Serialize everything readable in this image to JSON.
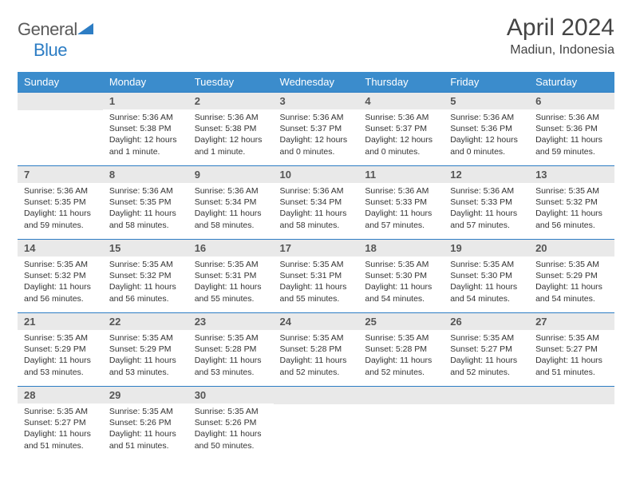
{
  "brand": {
    "word1": "General",
    "word2": "Blue"
  },
  "header": {
    "month": "April 2024",
    "location": "Madiun, Indonesia"
  },
  "colors": {
    "header_bg": "#3b8ccc",
    "border": "#2d7dc4",
    "daybg": "#e9e9e9",
    "text": "#333333"
  },
  "daynames": [
    "Sunday",
    "Monday",
    "Tuesday",
    "Wednesday",
    "Thursday",
    "Friday",
    "Saturday"
  ],
  "weeks": [
    [
      null,
      {
        "n": "1",
        "sr": "Sunrise: 5:36 AM",
        "ss": "Sunset: 5:38 PM",
        "dl": "Daylight: 12 hours and 1 minute."
      },
      {
        "n": "2",
        "sr": "Sunrise: 5:36 AM",
        "ss": "Sunset: 5:38 PM",
        "dl": "Daylight: 12 hours and 1 minute."
      },
      {
        "n": "3",
        "sr": "Sunrise: 5:36 AM",
        "ss": "Sunset: 5:37 PM",
        "dl": "Daylight: 12 hours and 0 minutes."
      },
      {
        "n": "4",
        "sr": "Sunrise: 5:36 AM",
        "ss": "Sunset: 5:37 PM",
        "dl": "Daylight: 12 hours and 0 minutes."
      },
      {
        "n": "5",
        "sr": "Sunrise: 5:36 AM",
        "ss": "Sunset: 5:36 PM",
        "dl": "Daylight: 12 hours and 0 minutes."
      },
      {
        "n": "6",
        "sr": "Sunrise: 5:36 AM",
        "ss": "Sunset: 5:36 PM",
        "dl": "Daylight: 11 hours and 59 minutes."
      }
    ],
    [
      {
        "n": "7",
        "sr": "Sunrise: 5:36 AM",
        "ss": "Sunset: 5:35 PM",
        "dl": "Daylight: 11 hours and 59 minutes."
      },
      {
        "n": "8",
        "sr": "Sunrise: 5:36 AM",
        "ss": "Sunset: 5:35 PM",
        "dl": "Daylight: 11 hours and 58 minutes."
      },
      {
        "n": "9",
        "sr": "Sunrise: 5:36 AM",
        "ss": "Sunset: 5:34 PM",
        "dl": "Daylight: 11 hours and 58 minutes."
      },
      {
        "n": "10",
        "sr": "Sunrise: 5:36 AM",
        "ss": "Sunset: 5:34 PM",
        "dl": "Daylight: 11 hours and 58 minutes."
      },
      {
        "n": "11",
        "sr": "Sunrise: 5:36 AM",
        "ss": "Sunset: 5:33 PM",
        "dl": "Daylight: 11 hours and 57 minutes."
      },
      {
        "n": "12",
        "sr": "Sunrise: 5:36 AM",
        "ss": "Sunset: 5:33 PM",
        "dl": "Daylight: 11 hours and 57 minutes."
      },
      {
        "n": "13",
        "sr": "Sunrise: 5:35 AM",
        "ss": "Sunset: 5:32 PM",
        "dl": "Daylight: 11 hours and 56 minutes."
      }
    ],
    [
      {
        "n": "14",
        "sr": "Sunrise: 5:35 AM",
        "ss": "Sunset: 5:32 PM",
        "dl": "Daylight: 11 hours and 56 minutes."
      },
      {
        "n": "15",
        "sr": "Sunrise: 5:35 AM",
        "ss": "Sunset: 5:32 PM",
        "dl": "Daylight: 11 hours and 56 minutes."
      },
      {
        "n": "16",
        "sr": "Sunrise: 5:35 AM",
        "ss": "Sunset: 5:31 PM",
        "dl": "Daylight: 11 hours and 55 minutes."
      },
      {
        "n": "17",
        "sr": "Sunrise: 5:35 AM",
        "ss": "Sunset: 5:31 PM",
        "dl": "Daylight: 11 hours and 55 minutes."
      },
      {
        "n": "18",
        "sr": "Sunrise: 5:35 AM",
        "ss": "Sunset: 5:30 PM",
        "dl": "Daylight: 11 hours and 54 minutes."
      },
      {
        "n": "19",
        "sr": "Sunrise: 5:35 AM",
        "ss": "Sunset: 5:30 PM",
        "dl": "Daylight: 11 hours and 54 minutes."
      },
      {
        "n": "20",
        "sr": "Sunrise: 5:35 AM",
        "ss": "Sunset: 5:29 PM",
        "dl": "Daylight: 11 hours and 54 minutes."
      }
    ],
    [
      {
        "n": "21",
        "sr": "Sunrise: 5:35 AM",
        "ss": "Sunset: 5:29 PM",
        "dl": "Daylight: 11 hours and 53 minutes."
      },
      {
        "n": "22",
        "sr": "Sunrise: 5:35 AM",
        "ss": "Sunset: 5:29 PM",
        "dl": "Daylight: 11 hours and 53 minutes."
      },
      {
        "n": "23",
        "sr": "Sunrise: 5:35 AM",
        "ss": "Sunset: 5:28 PM",
        "dl": "Daylight: 11 hours and 53 minutes."
      },
      {
        "n": "24",
        "sr": "Sunrise: 5:35 AM",
        "ss": "Sunset: 5:28 PM",
        "dl": "Daylight: 11 hours and 52 minutes."
      },
      {
        "n": "25",
        "sr": "Sunrise: 5:35 AM",
        "ss": "Sunset: 5:28 PM",
        "dl": "Daylight: 11 hours and 52 minutes."
      },
      {
        "n": "26",
        "sr": "Sunrise: 5:35 AM",
        "ss": "Sunset: 5:27 PM",
        "dl": "Daylight: 11 hours and 52 minutes."
      },
      {
        "n": "27",
        "sr": "Sunrise: 5:35 AM",
        "ss": "Sunset: 5:27 PM",
        "dl": "Daylight: 11 hours and 51 minutes."
      }
    ],
    [
      {
        "n": "28",
        "sr": "Sunrise: 5:35 AM",
        "ss": "Sunset: 5:27 PM",
        "dl": "Daylight: 11 hours and 51 minutes."
      },
      {
        "n": "29",
        "sr": "Sunrise: 5:35 AM",
        "ss": "Sunset: 5:26 PM",
        "dl": "Daylight: 11 hours and 51 minutes."
      },
      {
        "n": "30",
        "sr": "Sunrise: 5:35 AM",
        "ss": "Sunset: 5:26 PM",
        "dl": "Daylight: 11 hours and 50 minutes."
      },
      null,
      null,
      null,
      null
    ]
  ]
}
